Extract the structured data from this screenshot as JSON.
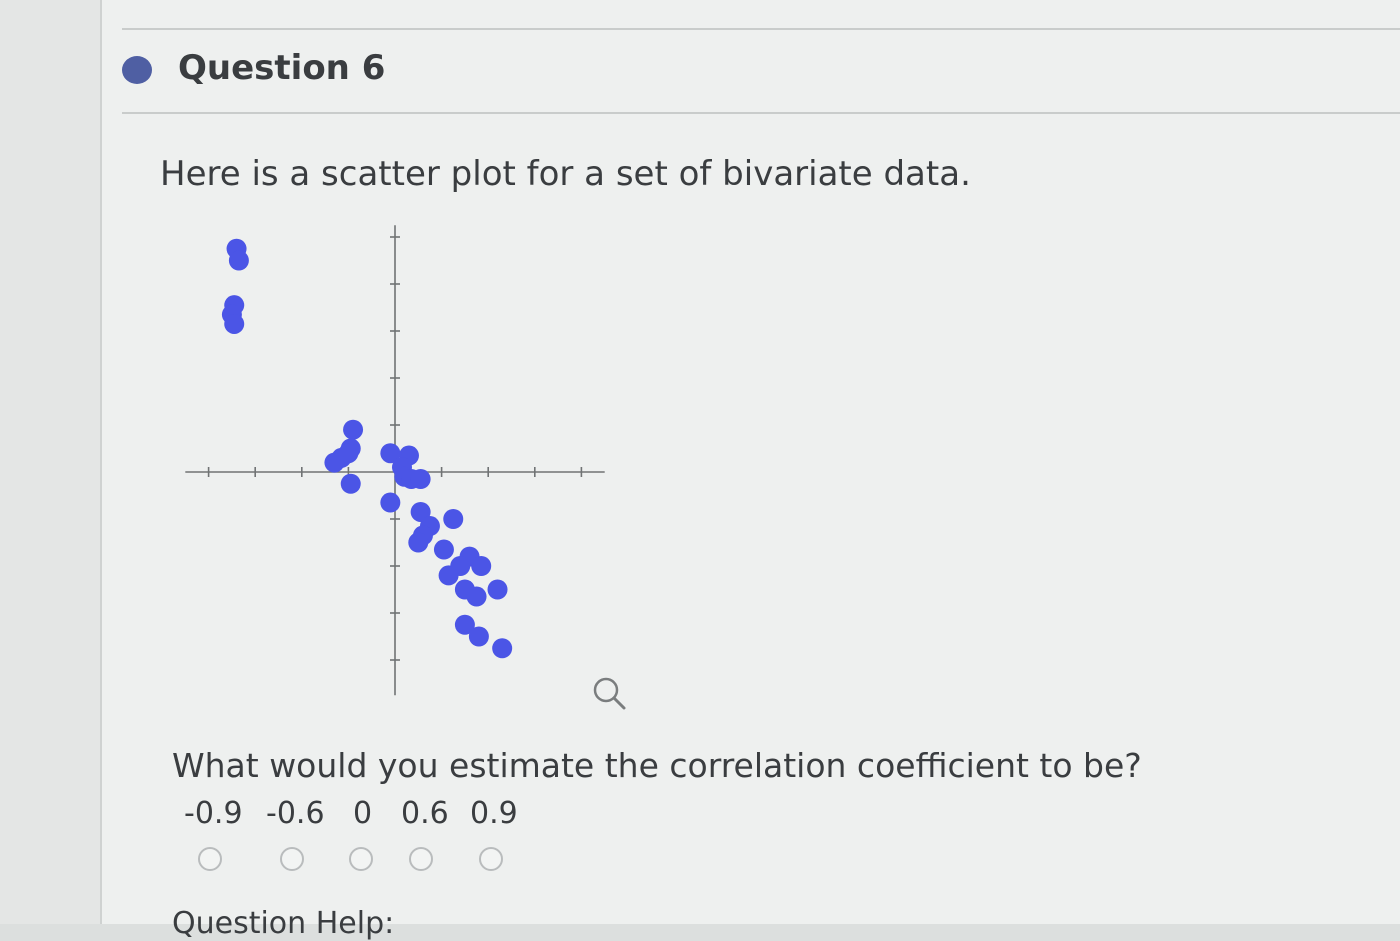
{
  "question": {
    "title": "Question 6",
    "prompt": "Here is a scatter plot for a set of bivariate data.",
    "ask": "What would you estimate the correlation coefficient to be?",
    "options": [
      "-0.9",
      "-0.6",
      "0",
      "0.6",
      "0.9"
    ],
    "footer_partial": "Question Help:"
  },
  "colors": {
    "bullet": "#4f5fa3",
    "point": "#4b55e6",
    "axis": "#707374"
  },
  "icons": {
    "magnify": "magnifier-icon"
  },
  "chart_data": {
    "type": "scatter",
    "points": [
      [
        -6.8,
        9.5
      ],
      [
        -6.7,
        9.0
      ],
      [
        -6.9,
        7.1
      ],
      [
        -7.0,
        6.7
      ],
      [
        -6.9,
        6.3
      ],
      [
        -1.8,
        1.8
      ],
      [
        -1.9,
        1.0
      ],
      [
        -2.3,
        0.6
      ],
      [
        -2.6,
        0.4
      ],
      [
        -2.0,
        0.8
      ],
      [
        -1.9,
        -0.5
      ],
      [
        -0.2,
        0.8
      ],
      [
        0.6,
        0.7
      ],
      [
        0.3,
        0.2
      ],
      [
        0.4,
        -0.2
      ],
      [
        0.7,
        -0.3
      ],
      [
        1.1,
        -0.3
      ],
      [
        -0.2,
        -1.3
      ],
      [
        1.1,
        -1.7
      ],
      [
        1.5,
        -2.3
      ],
      [
        1.2,
        -2.7
      ],
      [
        1.0,
        -3.0
      ],
      [
        2.5,
        -2.0
      ],
      [
        2.1,
        -3.3
      ],
      [
        3.2,
        -3.6
      ],
      [
        2.8,
        -4.0
      ],
      [
        2.3,
        -4.4
      ],
      [
        3.7,
        -4.0
      ],
      [
        3.0,
        -5.0
      ],
      [
        3.5,
        -5.3
      ],
      [
        4.4,
        -5.0
      ],
      [
        3.0,
        -6.5
      ],
      [
        3.6,
        -7.0
      ],
      [
        4.6,
        -7.5
      ]
    ],
    "xlim": [
      -9,
      9
    ],
    "ylim": [
      -9.5,
      10.5
    ]
  }
}
